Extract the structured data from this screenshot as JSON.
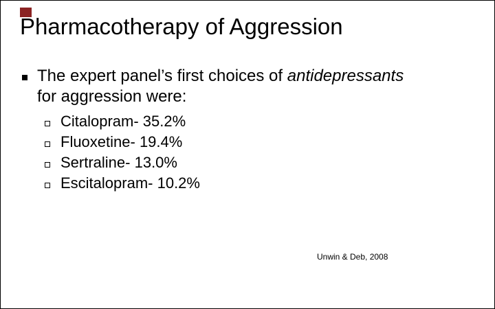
{
  "slide": {
    "title": "Pharmacotherapy of Aggression",
    "main_bullet": {
      "marker": "filled-square",
      "line1_prefix": "The expert panel’s first choices of ",
      "line1_italic": "antidepressants",
      "line2": "for aggression were:"
    },
    "sub_bullets": {
      "marker": "hollow-square",
      "items": [
        "Citalopram- 35.2%",
        "Fluoxetine- 19.4%",
        "Sertraline- 13.0%",
        "Escitalopram- 10.2%"
      ]
    },
    "citation": "Unwin & Deb, 2008",
    "colors": {
      "background": "#FFFFFF",
      "text": "#000000",
      "accent_square": "#8B2323"
    }
  }
}
